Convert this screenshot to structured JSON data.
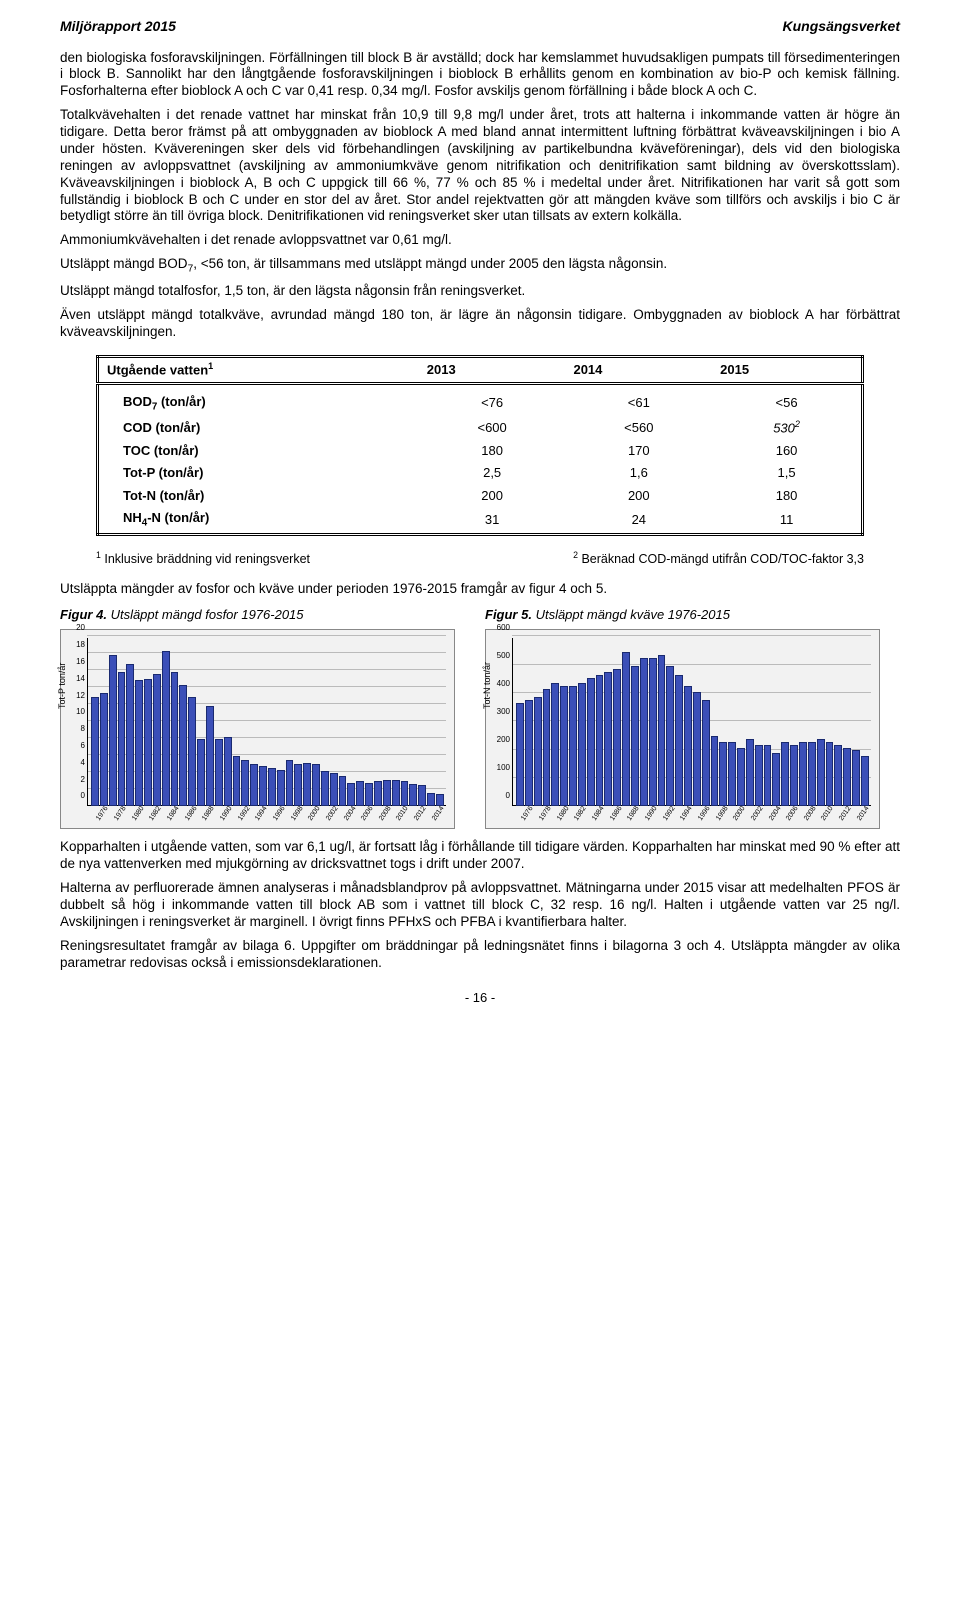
{
  "header": {
    "left": "Miljörapport 2015",
    "right": "Kungsängsverket"
  },
  "para1": "den biologiska fosforavskiljningen. Förfällningen till block B är avställd; dock har kemslammet huvudsakligen pumpats till försedimenteringen i block B. Sannolikt har den långtgående fosforavskiljningen i bioblock B erhållits genom en kombination av bio-P och kemisk fällning. Fosforhalterna efter bioblock A och C var 0,41 resp. 0,34 mg/l. Fosfor avskiljs genom förfällning i både block A och C.",
  "para2": "Totalkvävehalten i det renade vattnet har minskat från 10,9 till 9,8 mg/l under året, trots att halterna i inkommande vatten är högre än tidigare. Detta beror främst på att ombyggnaden av bioblock A med bland annat intermittent luftning förbättrat kväveavskiljningen i bio A under hösten. Kvävereningen sker dels vid förbehandlingen (avskiljning av partikelbundna kväveföreningar), dels vid den biologiska reningen av avloppsvattnet (avskiljning av ammoniumkväve genom nitrifikation och denitrifikation samt bildning av överskottsslam). Kväveavskiljningen i bioblock A, B och C uppgick till 66 %, 77 % och 85 % i medeltal under året. Nitrifikationen har varit så gott som fullständig i bioblock B och C under en stor del av året. Stor andel rejektvatten gör att mängden kväve som tillförs och avskiljs i bio C är betydligt större än till övriga block. Denitrifikationen vid reningsverket sker utan tillsats av extern kolkälla.",
  "para3": "Ammoniumkvävehalten i det renade avloppsvattnet var 0,61 mg/l.",
  "para4_a": "Utsläppt mängd BOD",
  "para4_b": ", <56 ton, är tillsammans med utsläppt mängd under 2005 den lägsta någonsin.",
  "para5": "Utsläppt mängd totalfosfor, 1,5 ton, är den lägsta någonsin från reningsverket.",
  "para6": "Även utsläppt mängd totalkväve, avrundad mängd 180 ton, är lägre än någonsin tidigare. Ombyggnaden av bioblock A har förbättrat kväveavskiljningen.",
  "table": {
    "header": [
      "Utgående vatten",
      "2013",
      "2014",
      "2015"
    ],
    "rows": [
      {
        "label_a": "BOD",
        "label_sub": "7",
        "label_b": " (ton/år)",
        "c1": "<76",
        "c2": "<61",
        "c3": "<56"
      },
      {
        "label_a": "COD (ton/år)",
        "label_sub": "",
        "label_b": "",
        "c1": "<600",
        "c2": "<560",
        "c3": "530",
        "c3_sup": "2",
        "c3_italic": true
      },
      {
        "label_a": "TOC (ton/år)",
        "label_sub": "",
        "label_b": "",
        "c1": "180",
        "c2": "170",
        "c3": "160"
      },
      {
        "label_a": "Tot-P (ton/år)",
        "label_sub": "",
        "label_b": "",
        "c1": "2,5",
        "c2": "1,6",
        "c3": "1,5"
      },
      {
        "label_a": "Tot-N (ton/år)",
        "label_sub": "",
        "label_b": "",
        "c1": "200",
        "c2": "200",
        "c3": "180"
      },
      {
        "label_a": "NH",
        "label_sub": "4",
        "label_b": "-N (ton/år)",
        "c1": "31",
        "c2": "24",
        "c3": "11"
      }
    ]
  },
  "footnote1": " Inklusive bräddning vid reningsverket",
  "footnote2": " Beräknad COD-mängd utifrån COD/TOC-faktor 3,3",
  "para7": "Utsläppta mängder av fosfor och kväve under perioden 1976-2015 framgår av figur 4 och 5.",
  "fig4": {
    "title_bold": "Figur 4.",
    "title_rest": "  Utsläppt mängd fosfor 1976-2015",
    "ylabel": "Tot-P ton/år",
    "ymax": 20,
    "ystep": 2,
    "bar_color": "#3b4fb8",
    "values": [
      13,
      13.5,
      18,
      16,
      17,
      15,
      15.2,
      15.8,
      18.5,
      16,
      14.5,
      13,
      8,
      12,
      8,
      8.3,
      6,
      5.5,
      5,
      4.8,
      4.6,
      4.4,
      5.5,
      5,
      5.2,
      5,
      4.2,
      4,
      3.6,
      2.8,
      3,
      2.8,
      3,
      3.2,
      3.2,
      3,
      2.7,
      2.5,
      1.6,
      1.5
    ],
    "years": [
      1976,
      1978,
      1980,
      1982,
      1984,
      1986,
      1988,
      1990,
      1992,
      1994,
      1996,
      1998,
      2000,
      2002,
      2004,
      2006,
      2008,
      2010,
      2012,
      2014
    ]
  },
  "fig5": {
    "title_bold": "Figur 5.",
    "title_rest": " Utsläppt mängd kväve 1976-2015",
    "ylabel": "Tot-N ton/år",
    "ymax": 600,
    "ystep": 100,
    "bar_color": "#3b4fb8",
    "values": [
      370,
      380,
      390,
      420,
      440,
      430,
      430,
      440,
      460,
      470,
      480,
      490,
      550,
      500,
      530,
      530,
      540,
      500,
      470,
      430,
      410,
      380,
      250,
      230,
      230,
      210,
      240,
      220,
      220,
      190,
      230,
      220,
      230,
      230,
      240,
      230,
      220,
      210,
      200,
      180
    ],
    "years": [
      1976,
      1978,
      1980,
      1982,
      1984,
      1986,
      1988,
      1990,
      1992,
      1994,
      1996,
      1998,
      2000,
      2002,
      2004,
      2006,
      2008,
      2010,
      2012,
      2014
    ]
  },
  "para8": "Kopparhalten i utgående vatten, som var 6,1 ug/l, är fortsatt låg i förhållande till tidigare värden. Kopparhalten har minskat med 90 % efter att de nya vattenverken med mjukgörning av dricksvattnet togs i drift under 2007.",
  "para9": "Halterna av perfluorerade ämnen analyseras i månadsblandprov på avloppsvattnet. Mätningarna under 2015 visar att medelhalten PFOS är dubbelt så hög i inkommande vatten till block AB som i vattnet till block C, 32 resp. 16 ng/l. Halten i utgående vatten var 25 ng/l. Avskiljningen i reningsverket är marginell. I övrigt finns PFHxS och PFBA i kvantifierbara halter.",
  "para10": "Reningsresultatet framgår av bilaga 6. Uppgifter om bräddningar på ledningsnätet finns i bilagorna 3 och 4. Utsläppta mängder av olika parametrar redovisas också i emissionsdeklarationen.",
  "pagenum": "- 16 -"
}
